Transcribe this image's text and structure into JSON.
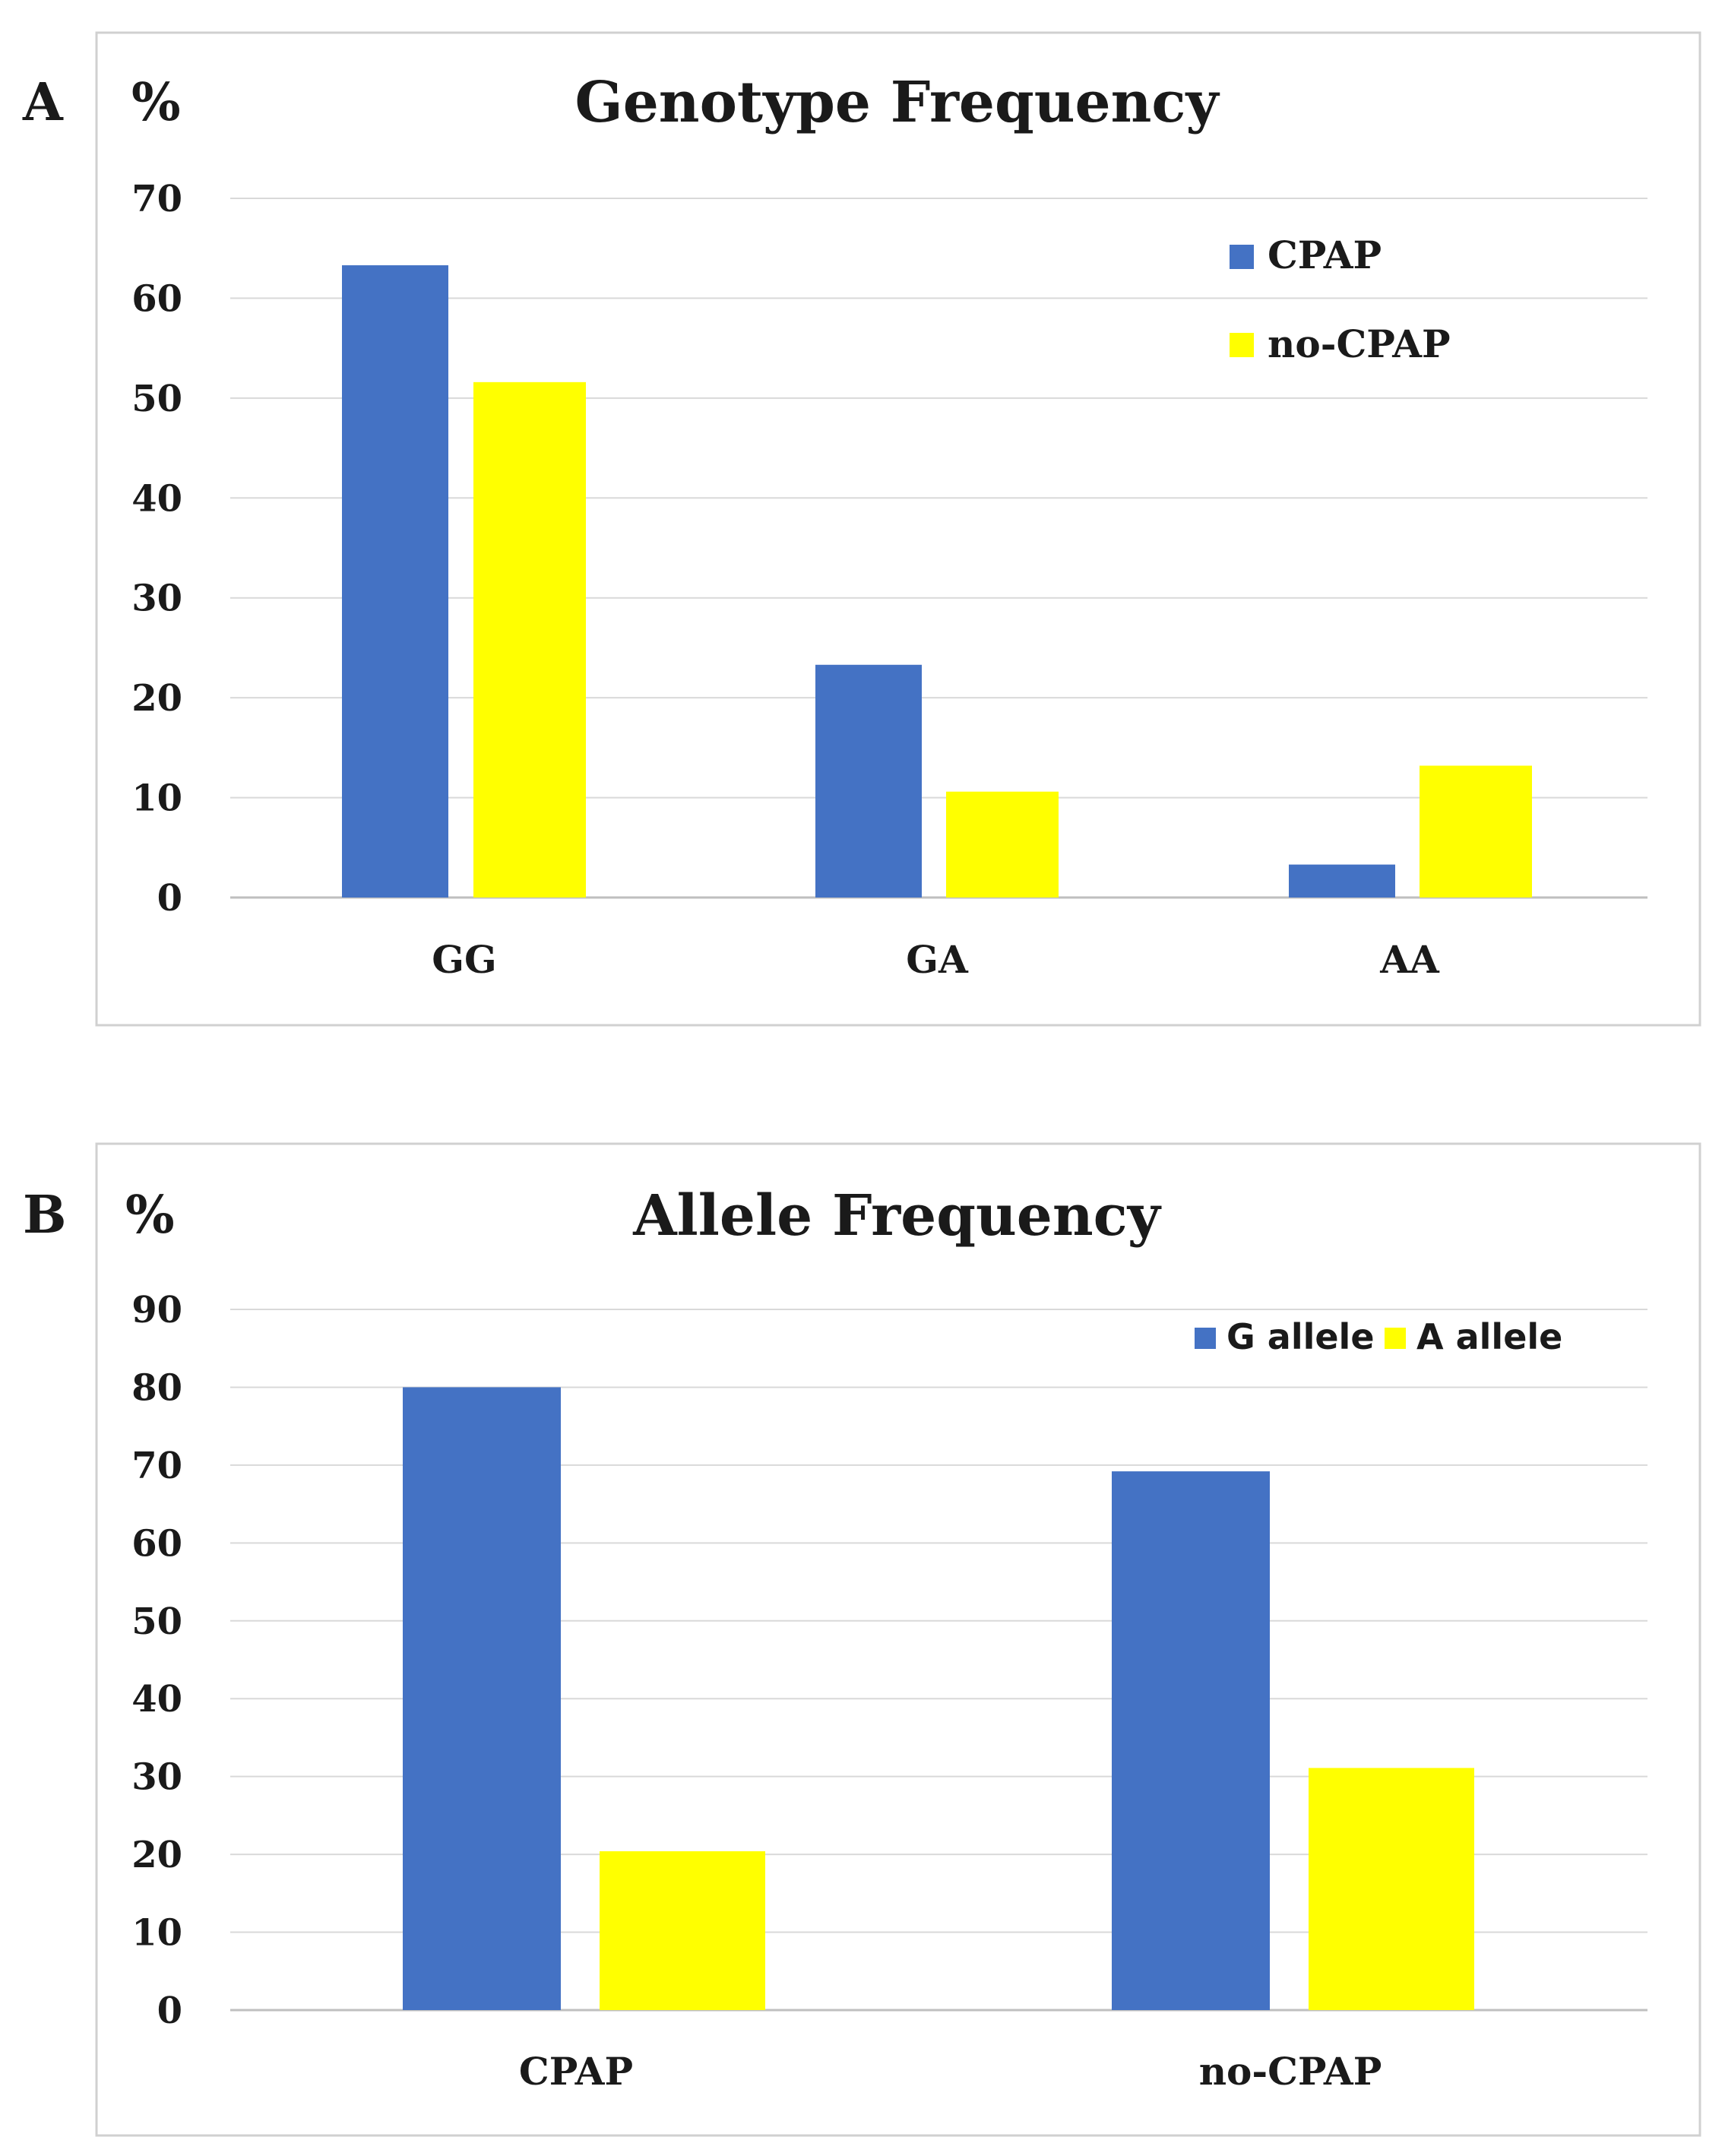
{
  "panels": [
    {
      "panel_label": "A",
      "unit_label": "%",
      "legend": [
        {
          "name": "CPAP",
          "color": "#4472C4"
        },
        {
          "name": "no-CPAP",
          "color": "#FFFF00"
        }
      ]
    },
    {
      "panel_label": "B",
      "unit_label": "%",
      "legend": [
        {
          "name": "G allele",
          "color": "#4472C4"
        },
        {
          "name": "A allele",
          "color": "#FFFF00"
        }
      ]
    }
  ],
  "chart_data": [
    {
      "type": "bar",
      "title": "Genotype Frequency",
      "xlabel": "",
      "ylabel": "%",
      "categories": [
        "GG",
        "GA",
        "AA"
      ],
      "series": [
        {
          "name": "CPAP",
          "color": "#4472C4",
          "values": [
            63.3,
            23.3,
            3.3
          ]
        },
        {
          "name": "no-CPAP",
          "color": "#FFFF00",
          "values": [
            51.6,
            10.6,
            13.2
          ]
        }
      ],
      "ylim": [
        0,
        70
      ],
      "yticks": [
        0,
        10,
        20,
        30,
        40,
        50,
        60,
        70
      ],
      "grid": true,
      "legend_position": "top-right"
    },
    {
      "type": "bar",
      "title": "Allele Frequency",
      "xlabel": "",
      "ylabel": "%",
      "categories": [
        "CPAP",
        "no-CPAP"
      ],
      "series": [
        {
          "name": "G allele",
          "color": "#4472C4",
          "values": [
            80,
            69.2
          ]
        },
        {
          "name": "A allele",
          "color": "#FFFF00",
          "values": [
            20.4,
            31.1
          ]
        }
      ],
      "ylim": [
        0,
        90
      ],
      "yticks": [
        0,
        10,
        20,
        30,
        40,
        50,
        60,
        70,
        80,
        90
      ],
      "grid": true,
      "legend_position": "top-right"
    }
  ]
}
